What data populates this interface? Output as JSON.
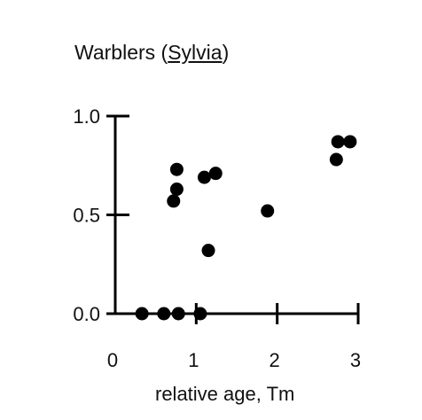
{
  "chart_data": {
    "type": "scatter",
    "title": {
      "prefix": "Warblers (",
      "genus": "Sylvia",
      "suffix": ")"
    },
    "xlabel": "relative age, Tm",
    "ylabel": "",
    "xlim": [
      0,
      3
    ],
    "ylim": [
      0,
      1
    ],
    "x_ticks": [
      "0",
      "1",
      "2",
      "3"
    ],
    "y_ticks": [
      "0.0",
      "0.5",
      "1.0"
    ],
    "grid": false,
    "legend": "none",
    "marker_color": "#000000",
    "points": [
      {
        "x": 0.33,
        "y": 0.0
      },
      {
        "x": 0.6,
        "y": 0.0
      },
      {
        "x": 0.78,
        "y": 0.0
      },
      {
        "x": 1.05,
        "y": 0.0
      },
      {
        "x": 0.72,
        "y": 0.57
      },
      {
        "x": 0.76,
        "y": 0.63
      },
      {
        "x": 0.76,
        "y": 0.73
      },
      {
        "x": 1.1,
        "y": 0.69
      },
      {
        "x": 1.24,
        "y": 0.71
      },
      {
        "x": 1.15,
        "y": 0.32
      },
      {
        "x": 1.88,
        "y": 0.52
      },
      {
        "x": 2.73,
        "y": 0.78
      },
      {
        "x": 2.75,
        "y": 0.87
      },
      {
        "x": 2.9,
        "y": 0.87
      }
    ]
  }
}
